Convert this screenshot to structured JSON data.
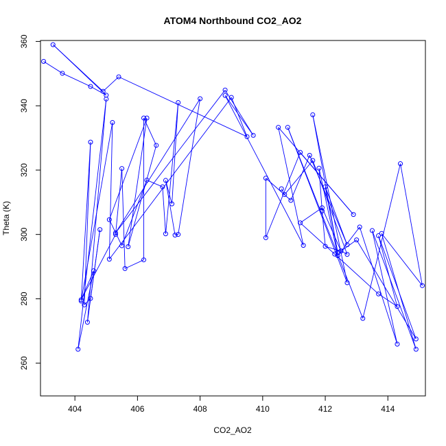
{
  "chart_data": {
    "type": "scatter",
    "title": "ATOM4 Northbound CO2_AO2",
    "xlabel": "CO2_AO2",
    "ylabel": "Theta (K)",
    "xlim": [
      402.9,
      415.2
    ],
    "ylim": [
      249.8,
      360.3
    ],
    "xticks": [
      404,
      406,
      408,
      410,
      412,
      414
    ],
    "yticks": [
      260,
      280,
      300,
      320,
      340,
      360
    ],
    "grid": false,
    "connect_points": true,
    "line_color": "#0000ff",
    "marker_color": "#0000ff",
    "series": [
      {
        "points": [
          [
            403.0,
            353.8
          ],
          [
            403.6,
            350.1
          ],
          [
            404.5,
            346.0
          ],
          [
            405.0,
            343.3
          ],
          [
            403.3,
            359.0
          ],
          [
            404.9,
            344.5
          ],
          [
            405.4,
            349.0
          ],
          [
            409.5,
            330.4
          ],
          [
            409.0,
            342.6
          ],
          [
            405.1,
            292.3
          ],
          [
            405.2,
            334.8
          ],
          [
            404.2,
            279.3
          ],
          [
            404.5,
            328.7
          ],
          [
            404.3,
            278.1
          ],
          [
            404.5,
            280.1
          ],
          [
            404.8,
            301.5
          ],
          [
            404.4,
            272.7
          ],
          [
            405.0,
            342.1
          ],
          [
            404.1,
            264.3
          ],
          [
            404.6,
            288.7
          ],
          [
            404.2,
            279.7
          ],
          [
            405.3,
            300.0
          ],
          [
            405.5,
            320.5
          ],
          [
            405.6,
            289.4
          ],
          [
            406.2,
            292.1
          ],
          [
            406.2,
            336.2
          ],
          [
            406.6,
            327.7
          ],
          [
            405.7,
            296.2
          ],
          [
            406.3,
            336.2
          ],
          [
            405.1,
            304.6
          ],
          [
            405.5,
            296.5
          ],
          [
            406.3,
            316.9
          ],
          [
            406.8,
            314.8
          ],
          [
            406.9,
            300.2
          ],
          [
            407.3,
            341.0
          ],
          [
            407.1,
            309.5
          ],
          [
            406.9,
            316.8
          ],
          [
            407.2,
            299.8
          ],
          [
            407.3,
            300.0
          ],
          [
            408.0,
            342.2
          ],
          [
            405.3,
            300.5
          ],
          [
            408.8,
            344.9
          ],
          [
            409.7,
            330.8
          ],
          [
            408.8,
            343.2
          ],
          [
            411.3,
            296.6
          ],
          [
            410.5,
            333.3
          ],
          [
            412.9,
            306.2
          ],
          [
            411.2,
            325.5
          ],
          [
            410.1,
            299.0
          ],
          [
            410.1,
            317.5
          ],
          [
            410.9,
            310.6
          ],
          [
            411.5,
            324.6
          ],
          [
            412.7,
            296.8
          ],
          [
            412.0,
            314.8
          ],
          [
            412.4,
            294.3
          ],
          [
            411.6,
            337.2
          ],
          [
            412.7,
            285.0
          ],
          [
            410.8,
            333.3
          ],
          [
            413.2,
            273.9
          ],
          [
            414.4,
            322.0
          ],
          [
            415.1,
            284.1
          ],
          [
            413.8,
            300.3
          ],
          [
            414.9,
            264.3
          ],
          [
            413.5,
            301.2
          ],
          [
            414.3,
            265.9
          ],
          [
            413.1,
            302.3
          ],
          [
            412.4,
            293.4
          ],
          [
            411.8,
            320.6
          ],
          [
            411.9,
            307.3
          ],
          [
            412.0,
            296.3
          ],
          [
            412.5,
            294.8
          ],
          [
            413.0,
            298.3
          ],
          [
            414.9,
            267.5
          ],
          [
            413.7,
            299.6
          ],
          [
            414.3,
            277.6
          ],
          [
            413.7,
            281.5
          ],
          [
            412.3,
            293.9
          ],
          [
            411.2,
            303.6
          ],
          [
            411.9,
            308.3
          ],
          [
            412.5,
            294.9
          ],
          [
            412.7,
            293.8
          ],
          [
            411.6,
            323.0
          ],
          [
            410.7,
            312.4
          ],
          [
            410.6,
            314.2
          ]
        ]
      }
    ]
  }
}
